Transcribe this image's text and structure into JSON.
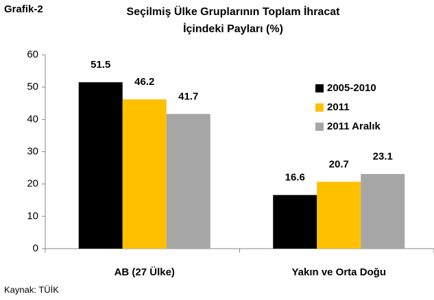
{
  "chart_data": {
    "type": "bar",
    "label": "Grafik-2",
    "title": [
      "Seçilmiş Ülke Gruplarının Toplam İhracat",
      "İçindeki Payları (%)"
    ],
    "source": "Kaynak: TÜİK",
    "categories": [
      "AB (27 Ülke)",
      "Yakın ve Orta Doğu"
    ],
    "series": [
      {
        "name": "2005-2010",
        "color": "#000000",
        "values": [
          51.5,
          16.6
        ]
      },
      {
        "name": "2011",
        "color": "#ffc000",
        "values": [
          46.2,
          20.7
        ]
      },
      {
        "name": "2011 Aralık",
        "color": "#a6a6a6",
        "values": [
          41.7,
          23.1
        ]
      }
    ],
    "ylim": [
      0,
      60
    ],
    "yticks": [
      0,
      10,
      20,
      30,
      40,
      50,
      60
    ],
    "grid": false,
    "legend": "right"
  }
}
